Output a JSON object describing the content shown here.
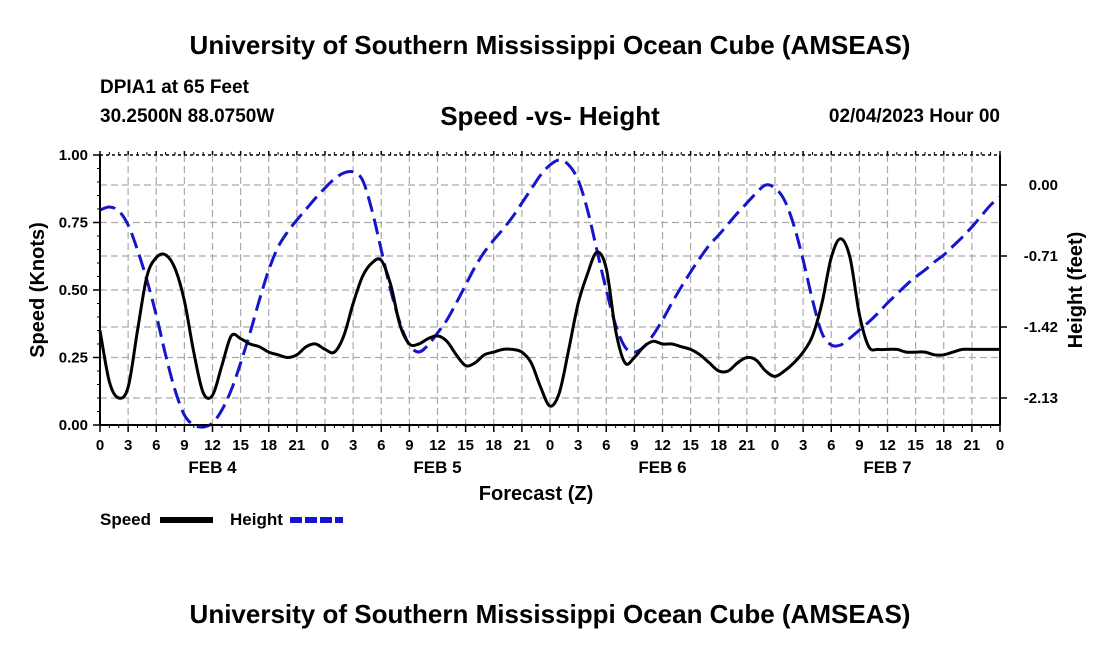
{
  "title": "University of Southern Mississippi Ocean Cube (AMSEAS)",
  "bottom_title": "University of Southern Mississippi Ocean Cube (AMSEAS)",
  "station": "DPIA1 at 65 Feet",
  "coords": "30.2500N  88.0750W",
  "date": "02/04/2023 Hour 00",
  "colors": {
    "speed": "#000000",
    "height": "#1515cc",
    "grid": "#aaaaaa"
  },
  "chart_data": {
    "type": "line",
    "title": "Speed -vs- Height",
    "xlabel": "Forecast (Z)",
    "ylabel": "Speed (Knots)",
    "y2label": "Height (feet)",
    "xlim": [
      0,
      96
    ],
    "ylim": [
      0,
      1
    ],
    "y2lim": [
      -2.4,
      0.3
    ],
    "x_ticks": [
      0,
      3,
      6,
      9,
      12,
      15,
      18,
      21,
      24,
      27,
      30,
      33,
      36,
      39,
      42,
      45,
      48,
      51,
      54,
      57,
      60,
      63,
      66,
      69,
      72,
      75,
      78,
      81,
      84,
      87,
      90,
      93,
      96
    ],
    "x_tick_labels": [
      "0",
      "3",
      "6",
      "9",
      "12",
      "15",
      "18",
      "21",
      "0",
      "3",
      "6",
      "9",
      "12",
      "15",
      "18",
      "21",
      "0",
      "3",
      "6",
      "9",
      "12",
      "15",
      "18",
      "21",
      "0",
      "3",
      "6",
      "9",
      "12",
      "15",
      "18",
      "21",
      "0"
    ],
    "day_labels": [
      {
        "x": 12,
        "label": "FEB 4"
      },
      {
        "x": 36,
        "label": "FEB 5"
      },
      {
        "x": 60,
        "label": "FEB 6"
      },
      {
        "x": 84,
        "label": "FEB 7"
      }
    ],
    "y_ticks": [
      0,
      0.25,
      0.5,
      0.75,
      1.0
    ],
    "y_tick_labels": [
      "0.00",
      "0.25",
      "0.50",
      "0.75",
      "1.00"
    ],
    "y2_ticks": [
      0.0,
      -0.71,
      -1.42,
      -2.13
    ],
    "y2_tick_labels": [
      "0.00",
      "-0.71",
      "-1.42",
      "-2.13"
    ],
    "grid": true,
    "legend_position": "bottom-left",
    "series": [
      {
        "name": "Speed",
        "axis": "left",
        "style": "solid",
        "x": [
          0,
          1,
          2,
          3,
          4,
          5,
          6,
          7,
          8,
          9,
          10,
          11,
          12,
          13,
          14,
          15,
          16,
          17,
          18,
          19,
          20,
          21,
          22,
          23,
          24,
          25,
          26,
          27,
          28,
          29,
          30,
          31,
          32,
          33,
          34,
          35,
          36,
          37,
          38,
          39,
          40,
          41,
          42,
          43,
          44,
          45,
          46,
          47,
          48,
          49,
          50,
          51,
          52,
          53,
          54,
          55,
          56,
          57,
          58,
          59,
          60,
          61,
          62,
          63,
          64,
          65,
          66,
          67,
          68,
          69,
          70,
          71,
          72,
          73,
          74,
          75,
          76,
          77,
          78,
          79,
          80,
          81,
          82,
          83,
          84,
          85,
          86,
          87,
          88,
          89,
          90,
          91,
          92,
          93,
          94,
          95,
          96
        ],
        "values": [
          0.35,
          0.16,
          0.1,
          0.14,
          0.35,
          0.55,
          0.62,
          0.63,
          0.58,
          0.46,
          0.27,
          0.12,
          0.11,
          0.22,
          0.33,
          0.32,
          0.3,
          0.29,
          0.27,
          0.26,
          0.25,
          0.26,
          0.29,
          0.3,
          0.28,
          0.27,
          0.33,
          0.45,
          0.55,
          0.6,
          0.61,
          0.52,
          0.37,
          0.3,
          0.3,
          0.32,
          0.33,
          0.31,
          0.26,
          0.22,
          0.23,
          0.26,
          0.27,
          0.28,
          0.28,
          0.27,
          0.23,
          0.14,
          0.07,
          0.12,
          0.28,
          0.45,
          0.56,
          0.64,
          0.58,
          0.35,
          0.23,
          0.25,
          0.29,
          0.31,
          0.3,
          0.3,
          0.29,
          0.28,
          0.26,
          0.23,
          0.2,
          0.2,
          0.23,
          0.25,
          0.24,
          0.2,
          0.18,
          0.2,
          0.23,
          0.27,
          0.33,
          0.45,
          0.62,
          0.69,
          0.62,
          0.41,
          0.29,
          0.28,
          0.28,
          0.28,
          0.27,
          0.27,
          0.27,
          0.26,
          0.26,
          0.27,
          0.28,
          0.28,
          0.28,
          0.28,
          0.28
        ]
      },
      {
        "name": "Height",
        "axis": "right",
        "style": "dashed",
        "x": [
          0,
          1,
          2,
          3,
          4,
          5,
          6,
          7,
          8,
          9,
          10,
          11,
          12,
          13,
          14,
          15,
          16,
          17,
          18,
          19,
          20,
          21,
          22,
          23,
          24,
          25,
          26,
          27,
          28,
          29,
          30,
          31,
          32,
          33,
          34,
          35,
          36,
          37,
          38,
          39,
          40,
          41,
          42,
          43,
          44,
          45,
          46,
          47,
          48,
          49,
          50,
          51,
          52,
          53,
          54,
          55,
          56,
          57,
          58,
          59,
          60,
          61,
          62,
          63,
          64,
          65,
          66,
          67,
          68,
          69,
          70,
          71,
          72,
          73,
          74,
          75,
          76,
          77,
          78,
          79,
          80,
          81,
          82,
          83,
          84,
          85,
          86,
          87,
          88,
          89,
          90,
          91,
          92,
          93,
          94,
          95,
          96
        ],
        "values": [
          -0.25,
          -0.22,
          -0.26,
          -0.4,
          -0.65,
          -0.95,
          -1.3,
          -1.7,
          -2.05,
          -2.3,
          -2.4,
          -2.42,
          -2.38,
          -2.25,
          -2.05,
          -1.78,
          -1.48,
          -1.15,
          -0.85,
          -0.62,
          -0.47,
          -0.35,
          -0.24,
          -0.13,
          -0.03,
          0.06,
          0.12,
          0.13,
          0.05,
          -0.25,
          -0.65,
          -1.05,
          -1.38,
          -1.6,
          -1.67,
          -1.6,
          -1.48,
          -1.35,
          -1.18,
          -1.0,
          -0.82,
          -0.67,
          -0.55,
          -0.44,
          -0.32,
          -0.18,
          -0.04,
          0.1,
          0.2,
          0.25,
          0.2,
          0.05,
          -0.25,
          -0.65,
          -1.05,
          -1.4,
          -1.62,
          -1.67,
          -1.62,
          -1.5,
          -1.35,
          -1.18,
          -1.02,
          -0.87,
          -0.73,
          -0.6,
          -0.5,
          -0.39,
          -0.28,
          -0.18,
          -0.08,
          0.0,
          -0.03,
          -0.15,
          -0.4,
          -0.75,
          -1.15,
          -1.48,
          -1.6,
          -1.6,
          -1.53,
          -1.45,
          -1.37,
          -1.28,
          -1.18,
          -1.09,
          -1.0,
          -0.92,
          -0.85,
          -0.77,
          -0.7,
          -0.61,
          -0.52,
          -0.42,
          -0.31,
          -0.2,
          -0.12
        ]
      }
    ]
  }
}
